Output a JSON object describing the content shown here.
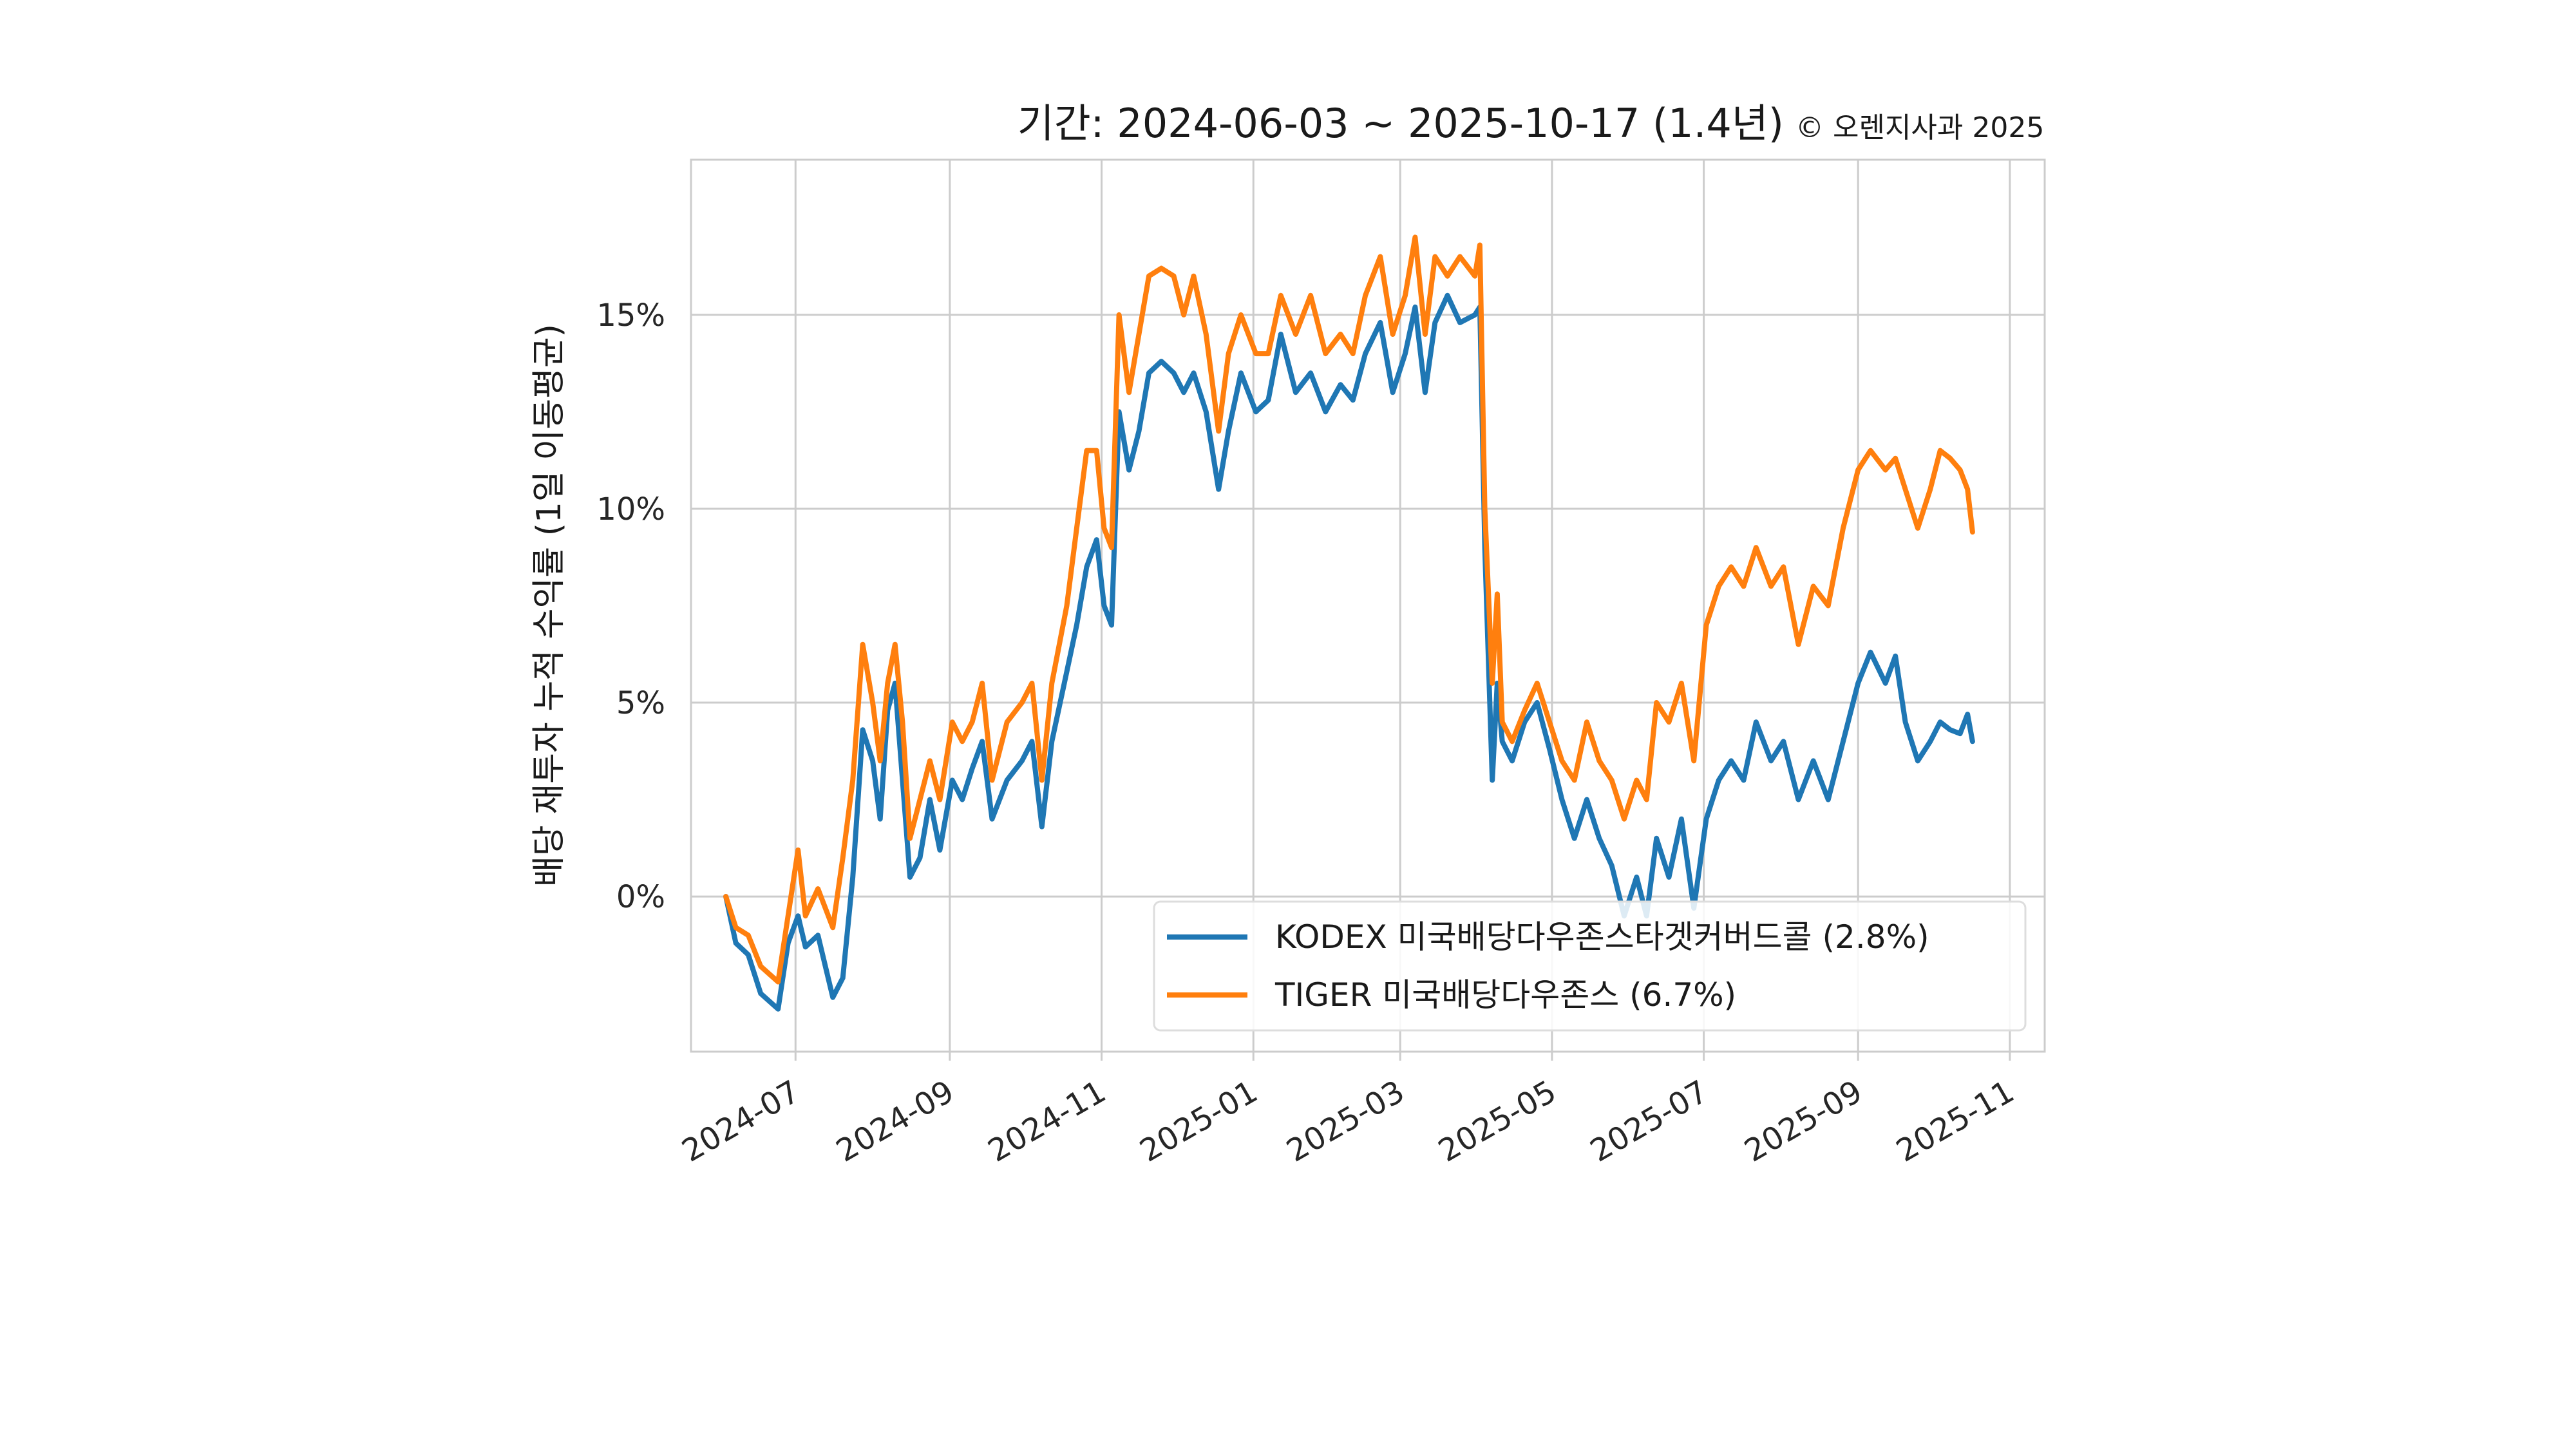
{
  "chart_data": {
    "type": "line",
    "title": "기간: 2024-06-03 ~ 2025-10-17 (1.4년)",
    "credit": "© 오렌지사과 2025",
    "ylabel": "배당 재투자 누적 수익률 (1일 이동평균)",
    "xlabel": "",
    "x_range": [
      "2024-05-20",
      "2025-11-15"
    ],
    "ylim": [
      -4,
      19
    ],
    "grid": true,
    "legend_position": "lower-right",
    "x_ticks": [
      "2024-07",
      "2024-09",
      "2024-11",
      "2025-01",
      "2025-03",
      "2025-05",
      "2025-07",
      "2025-09",
      "2025-11"
    ],
    "y_ticks": [
      {
        "value": 0,
        "label": "0%"
      },
      {
        "value": 5,
        "label": "5%"
      },
      {
        "value": 10,
        "label": "10%"
      },
      {
        "value": 15,
        "label": "15%"
      }
    ],
    "series": [
      {
        "name": "KODEX 미국배당다우존스타겟커버드콜 (2.8%)",
        "color": "#1f77b4",
        "points": [
          [
            "2024-06-03",
            0.0
          ],
          [
            "2024-06-07",
            -1.2
          ],
          [
            "2024-06-12",
            -1.5
          ],
          [
            "2024-06-17",
            -2.5
          ],
          [
            "2024-06-24",
            -2.9
          ],
          [
            "2024-06-28",
            -1.2
          ],
          [
            "2024-07-02",
            -0.5
          ],
          [
            "2024-07-05",
            -1.3
          ],
          [
            "2024-07-10",
            -1.0
          ],
          [
            "2024-07-16",
            -2.6
          ],
          [
            "2024-07-20",
            -2.1
          ],
          [
            "2024-07-24",
            0.5
          ],
          [
            "2024-07-28",
            4.3
          ],
          [
            "2024-08-01",
            3.5
          ],
          [
            "2024-08-04",
            2.0
          ],
          [
            "2024-08-07",
            4.8
          ],
          [
            "2024-08-10",
            5.5
          ],
          [
            "2024-08-13",
            3.0
          ],
          [
            "2024-08-16",
            0.5
          ],
          [
            "2024-08-20",
            1.0
          ],
          [
            "2024-08-24",
            2.5
          ],
          [
            "2024-08-28",
            1.2
          ],
          [
            "2024-09-02",
            3.0
          ],
          [
            "2024-09-06",
            2.5
          ],
          [
            "2024-09-10",
            3.3
          ],
          [
            "2024-09-14",
            4.0
          ],
          [
            "2024-09-18",
            2.0
          ],
          [
            "2024-09-24",
            3.0
          ],
          [
            "2024-09-30",
            3.5
          ],
          [
            "2024-10-04",
            4.0
          ],
          [
            "2024-10-08",
            1.8
          ],
          [
            "2024-10-12",
            4.0
          ],
          [
            "2024-10-18",
            5.8
          ],
          [
            "2024-10-22",
            7.0
          ],
          [
            "2024-10-26",
            8.5
          ],
          [
            "2024-10-30",
            9.2
          ],
          [
            "2024-11-02",
            7.5
          ],
          [
            "2024-11-05",
            7.0
          ],
          [
            "2024-11-08",
            12.5
          ],
          [
            "2024-11-12",
            11.0
          ],
          [
            "2024-11-16",
            12.0
          ],
          [
            "2024-11-20",
            13.5
          ],
          [
            "2024-11-25",
            13.8
          ],
          [
            "2024-11-30",
            13.5
          ],
          [
            "2024-12-04",
            13.0
          ],
          [
            "2024-12-08",
            13.5
          ],
          [
            "2024-12-13",
            12.5
          ],
          [
            "2024-12-18",
            10.5
          ],
          [
            "2024-12-22",
            12.0
          ],
          [
            "2024-12-27",
            13.5
          ],
          [
            "2025-01-02",
            12.5
          ],
          [
            "2025-01-07",
            12.8
          ],
          [
            "2025-01-12",
            14.5
          ],
          [
            "2025-01-18",
            13.0
          ],
          [
            "2025-01-24",
            13.5
          ],
          [
            "2025-01-30",
            12.5
          ],
          [
            "2025-02-05",
            13.2
          ],
          [
            "2025-02-10",
            12.8
          ],
          [
            "2025-02-15",
            14.0
          ],
          [
            "2025-02-21",
            14.8
          ],
          [
            "2025-02-26",
            13.0
          ],
          [
            "2025-03-03",
            14.0
          ],
          [
            "2025-03-07",
            15.2
          ],
          [
            "2025-03-11",
            13.0
          ],
          [
            "2025-03-15",
            14.8
          ],
          [
            "2025-03-20",
            15.5
          ],
          [
            "2025-03-25",
            14.8
          ],
          [
            "2025-03-31",
            15.0
          ],
          [
            "2025-04-02",
            15.2
          ],
          [
            "2025-04-04",
            9.0
          ],
          [
            "2025-04-07",
            3.0
          ],
          [
            "2025-04-09",
            5.5
          ],
          [
            "2025-04-11",
            4.0
          ],
          [
            "2025-04-15",
            3.5
          ],
          [
            "2025-04-20",
            4.5
          ],
          [
            "2025-04-25",
            5.0
          ],
          [
            "2025-04-30",
            3.8
          ],
          [
            "2025-05-05",
            2.5
          ],
          [
            "2025-05-10",
            1.5
          ],
          [
            "2025-05-15",
            2.5
          ],
          [
            "2025-05-20",
            1.5
          ],
          [
            "2025-05-25",
            0.8
          ],
          [
            "2025-05-30",
            -0.5
          ],
          [
            "2025-06-04",
            0.5
          ],
          [
            "2025-06-08",
            -0.5
          ],
          [
            "2025-06-12",
            1.5
          ],
          [
            "2025-06-17",
            0.5
          ],
          [
            "2025-06-22",
            2.0
          ],
          [
            "2025-06-27",
            -0.3
          ],
          [
            "2025-07-02",
            2.0
          ],
          [
            "2025-07-07",
            3.0
          ],
          [
            "2025-07-12",
            3.5
          ],
          [
            "2025-07-17",
            3.0
          ],
          [
            "2025-07-22",
            4.5
          ],
          [
            "2025-07-28",
            3.5
          ],
          [
            "2025-08-02",
            4.0
          ],
          [
            "2025-08-08",
            2.5
          ],
          [
            "2025-08-14",
            3.5
          ],
          [
            "2025-08-20",
            2.5
          ],
          [
            "2025-08-26",
            4.0
          ],
          [
            "2025-09-01",
            5.5
          ],
          [
            "2025-09-06",
            6.3
          ],
          [
            "2025-09-12",
            5.5
          ],
          [
            "2025-09-16",
            6.2
          ],
          [
            "2025-09-20",
            4.5
          ],
          [
            "2025-09-25",
            3.5
          ],
          [
            "2025-09-30",
            4.0
          ],
          [
            "2025-10-04",
            4.5
          ],
          [
            "2025-10-08",
            4.3
          ],
          [
            "2025-10-12",
            4.2
          ],
          [
            "2025-10-15",
            4.7
          ],
          [
            "2025-10-17",
            4.0
          ]
        ]
      },
      {
        "name": "TIGER 미국배당다우존스 (6.7%)",
        "color": "#ff7f0e",
        "points": [
          [
            "2024-06-03",
            0.0
          ],
          [
            "2024-06-07",
            -0.8
          ],
          [
            "2024-06-12",
            -1.0
          ],
          [
            "2024-06-17",
            -1.8
          ],
          [
            "2024-06-24",
            -2.2
          ],
          [
            "2024-06-28",
            -0.5
          ],
          [
            "2024-07-02",
            1.2
          ],
          [
            "2024-07-05",
            -0.5
          ],
          [
            "2024-07-10",
            0.2
          ],
          [
            "2024-07-16",
            -0.8
          ],
          [
            "2024-07-20",
            1.0
          ],
          [
            "2024-07-24",
            3.0
          ],
          [
            "2024-07-28",
            6.5
          ],
          [
            "2024-08-01",
            5.0
          ],
          [
            "2024-08-04",
            3.5
          ],
          [
            "2024-08-07",
            5.5
          ],
          [
            "2024-08-10",
            6.5
          ],
          [
            "2024-08-13",
            4.5
          ],
          [
            "2024-08-16",
            1.5
          ],
          [
            "2024-08-20",
            2.5
          ],
          [
            "2024-08-24",
            3.5
          ],
          [
            "2024-08-28",
            2.5
          ],
          [
            "2024-09-02",
            4.5
          ],
          [
            "2024-09-06",
            4.0
          ],
          [
            "2024-09-10",
            4.5
          ],
          [
            "2024-09-14",
            5.5
          ],
          [
            "2024-09-18",
            3.0
          ],
          [
            "2024-09-24",
            4.5
          ],
          [
            "2024-09-30",
            5.0
          ],
          [
            "2024-10-04",
            5.5
          ],
          [
            "2024-10-08",
            3.0
          ],
          [
            "2024-10-12",
            5.5
          ],
          [
            "2024-10-18",
            7.5
          ],
          [
            "2024-10-22",
            9.5
          ],
          [
            "2024-10-26",
            11.5
          ],
          [
            "2024-10-30",
            11.5
          ],
          [
            "2024-11-02",
            9.5
          ],
          [
            "2024-11-05",
            9.0
          ],
          [
            "2024-11-08",
            15.0
          ],
          [
            "2024-11-12",
            13.0
          ],
          [
            "2024-11-16",
            14.5
          ],
          [
            "2024-11-20",
            16.0
          ],
          [
            "2024-11-25",
            16.2
          ],
          [
            "2024-11-30",
            16.0
          ],
          [
            "2024-12-04",
            15.0
          ],
          [
            "2024-12-08",
            16.0
          ],
          [
            "2024-12-13",
            14.5
          ],
          [
            "2024-12-18",
            12.0
          ],
          [
            "2024-12-22",
            14.0
          ],
          [
            "2024-12-27",
            15.0
          ],
          [
            "2025-01-02",
            14.0
          ],
          [
            "2025-01-07",
            14.0
          ],
          [
            "2025-01-12",
            15.5
          ],
          [
            "2025-01-18",
            14.5
          ],
          [
            "2025-01-24",
            15.5
          ],
          [
            "2025-01-30",
            14.0
          ],
          [
            "2025-02-05",
            14.5
          ],
          [
            "2025-02-10",
            14.0
          ],
          [
            "2025-02-15",
            15.5
          ],
          [
            "2025-02-21",
            16.5
          ],
          [
            "2025-02-26",
            14.5
          ],
          [
            "2025-03-03",
            15.5
          ],
          [
            "2025-03-07",
            17.0
          ],
          [
            "2025-03-11",
            14.5
          ],
          [
            "2025-03-15",
            16.5
          ],
          [
            "2025-03-20",
            16.0
          ],
          [
            "2025-03-25",
            16.5
          ],
          [
            "2025-03-31",
            16.0
          ],
          [
            "2025-04-02",
            16.8
          ],
          [
            "2025-04-04",
            10.0
          ],
          [
            "2025-04-07",
            5.5
          ],
          [
            "2025-04-09",
            7.8
          ],
          [
            "2025-04-11",
            4.5
          ],
          [
            "2025-04-15",
            4.0
          ],
          [
            "2025-04-20",
            4.8
          ],
          [
            "2025-04-25",
            5.5
          ],
          [
            "2025-04-30",
            4.5
          ],
          [
            "2025-05-05",
            3.5
          ],
          [
            "2025-05-10",
            3.0
          ],
          [
            "2025-05-15",
            4.5
          ],
          [
            "2025-05-20",
            3.5
          ],
          [
            "2025-05-25",
            3.0
          ],
          [
            "2025-05-30",
            2.0
          ],
          [
            "2025-06-04",
            3.0
          ],
          [
            "2025-06-08",
            2.5
          ],
          [
            "2025-06-12",
            5.0
          ],
          [
            "2025-06-17",
            4.5
          ],
          [
            "2025-06-22",
            5.5
          ],
          [
            "2025-06-27",
            3.5
          ],
          [
            "2025-07-02",
            7.0
          ],
          [
            "2025-07-07",
            8.0
          ],
          [
            "2025-07-12",
            8.5
          ],
          [
            "2025-07-17",
            8.0
          ],
          [
            "2025-07-22",
            9.0
          ],
          [
            "2025-07-28",
            8.0
          ],
          [
            "2025-08-02",
            8.5
          ],
          [
            "2025-08-08",
            6.5
          ],
          [
            "2025-08-14",
            8.0
          ],
          [
            "2025-08-20",
            7.5
          ],
          [
            "2025-08-26",
            9.5
          ],
          [
            "2025-09-01",
            11.0
          ],
          [
            "2025-09-06",
            11.5
          ],
          [
            "2025-09-12",
            11.0
          ],
          [
            "2025-09-16",
            11.3
          ],
          [
            "2025-09-20",
            10.5
          ],
          [
            "2025-09-25",
            9.5
          ],
          [
            "2025-09-30",
            10.5
          ],
          [
            "2025-10-04",
            11.5
          ],
          [
            "2025-10-08",
            11.3
          ],
          [
            "2025-10-12",
            11.0
          ],
          [
            "2025-10-15",
            10.5
          ],
          [
            "2025-10-17",
            9.4
          ]
        ]
      }
    ]
  }
}
